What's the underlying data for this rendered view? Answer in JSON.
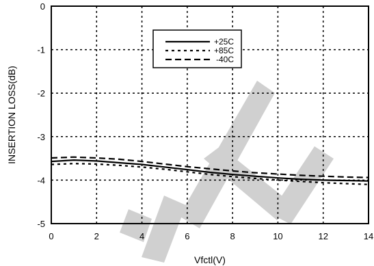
{
  "chart_data": {
    "type": "line",
    "title": "",
    "xlabel": "Vfctl(V)",
    "ylabel": "INSERTION LOSS(dB)",
    "xlim": [
      0,
      14
    ],
    "ylim": [
      -5,
      0
    ],
    "xticks": [
      0,
      2,
      4,
      6,
      8,
      10,
      12,
      14
    ],
    "yticks": [
      0,
      -1,
      -2,
      -3,
      -4,
      -5
    ],
    "grid": true,
    "legend_position": "top-right",
    "series": [
      {
        "name": "+25C",
        "style": "solid",
        "x": [
          0,
          1,
          2,
          3,
          4,
          5,
          6,
          7,
          8,
          9,
          10,
          11,
          12,
          13,
          14
        ],
        "y": [
          -3.57,
          -3.54,
          -3.56,
          -3.6,
          -3.64,
          -3.7,
          -3.76,
          -3.82,
          -3.87,
          -3.91,
          -3.95,
          -3.98,
          -4.0,
          -4.01,
          -4.02
        ]
      },
      {
        "name": "+85C",
        "style": "dotted",
        "x": [
          0,
          1,
          2,
          3,
          4,
          5,
          6,
          7,
          8,
          9,
          10,
          11,
          12,
          13,
          14
        ],
        "y": [
          -3.64,
          -3.62,
          -3.63,
          -3.66,
          -3.7,
          -3.75,
          -3.81,
          -3.87,
          -3.92,
          -3.96,
          -4.0,
          -4.03,
          -4.06,
          -4.08,
          -4.1
        ]
      },
      {
        "name": "-40C",
        "style": "dashed",
        "x": [
          0,
          1,
          2,
          3,
          4,
          5,
          6,
          7,
          8,
          9,
          10,
          11,
          12,
          13,
          14
        ],
        "y": [
          -3.49,
          -3.47,
          -3.49,
          -3.52,
          -3.57,
          -3.63,
          -3.69,
          -3.74,
          -3.79,
          -3.83,
          -3.86,
          -3.89,
          -3.91,
          -3.93,
          -3.94
        ]
      }
    ]
  }
}
